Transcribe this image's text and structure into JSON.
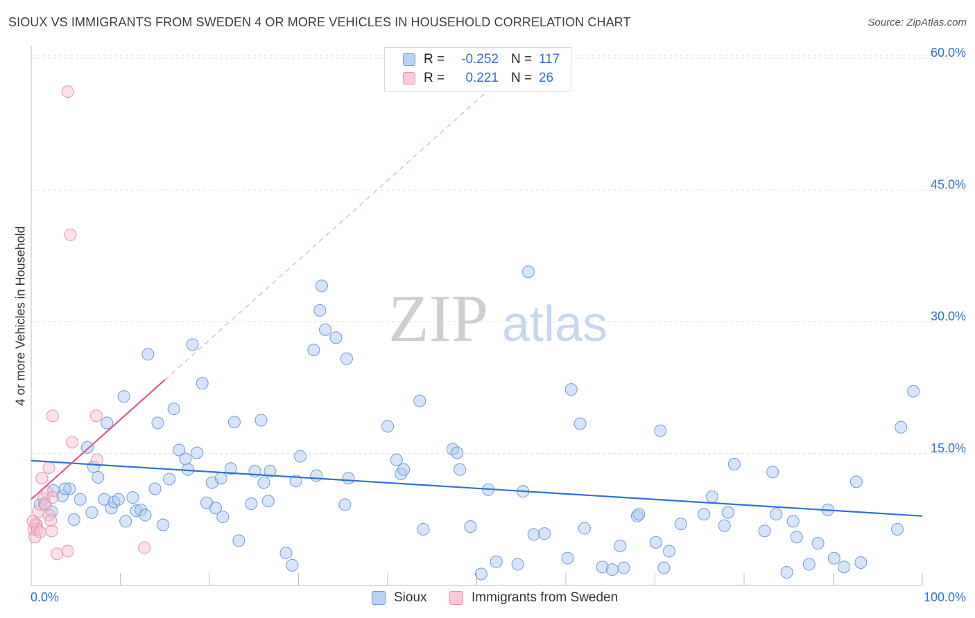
{
  "title": "SIOUX VS IMMIGRANTS FROM SWEDEN 4 OR MORE VEHICLES IN HOUSEHOLD CORRELATION CHART",
  "source": "Source: ZipAtlas.com",
  "watermark": {
    "zip": "ZIP",
    "atlas": "atlas"
  },
  "legend": {
    "rows": [
      {
        "r_label": "R =",
        "r_value": "-0.252",
        "n_label": "N =",
        "n_value": "117"
      },
      {
        "r_label": "R =",
        "r_value": "0.221",
        "n_label": "N =",
        "n_value": "26"
      }
    ]
  },
  "bottom_legend": {
    "series1": "Sioux",
    "series2": "Immigrants from Sweden"
  },
  "colors": {
    "sioux_fill": "#a9c6ef",
    "sioux_stroke": "#6d9ad8",
    "sioux_line": "#2f6fd6",
    "sweden_fill": "#f6bfd0",
    "sweden_stroke": "#ec8eab",
    "sweden_line": "#e0568a",
    "tick_label": "#2f6fd6",
    "grid": "#dcdcdc"
  },
  "chart_data": {
    "type": "scatter",
    "title": "SIOUX VS IMMIGRANTS FROM SWEDEN 4 OR MORE VEHICLES IN HOUSEHOLD CORRELATION CHART",
    "xlabel": "",
    "ylabel": "4 or more Vehicles in Household",
    "xlim": [
      0,
      100
    ],
    "ylim": [
      0,
      60
    ],
    "x_tick_labels": [
      "0.0%",
      "100.0%"
    ],
    "y_ticks": [
      15,
      30,
      45,
      60
    ],
    "y_tick_labels": [
      "15.0%",
      "30.0%",
      "45.0%",
      "60.0%"
    ],
    "grid": true,
    "legend_position": "top-center",
    "series": [
      {
        "name": "Sioux",
        "R": -0.252,
        "N": 117,
        "trend": {
          "x": [
            0,
            100
          ],
          "y": [
            14.2,
            7.9
          ]
        },
        "points": [
          [
            1.0,
            9.2
          ],
          [
            2.5,
            10.8
          ],
          [
            3.5,
            10.2
          ],
          [
            4.3,
            11.0
          ],
          [
            5.5,
            9.8
          ],
          [
            6.3,
            15.7
          ],
          [
            6.8,
            8.3
          ],
          [
            7.0,
            13.5
          ],
          [
            7.5,
            12.3
          ],
          [
            8.2,
            9.8
          ],
          [
            8.5,
            18.5
          ],
          [
            9.0,
            8.8
          ],
          [
            9.3,
            9.5
          ],
          [
            9.8,
            9.8
          ],
          [
            10.4,
            21.5
          ],
          [
            10.6,
            7.3
          ],
          [
            11.4,
            10.0
          ],
          [
            11.8,
            8.5
          ],
          [
            12.3,
            8.6
          ],
          [
            12.8,
            8.0
          ],
          [
            13.1,
            26.3
          ],
          [
            13.9,
            11.0
          ],
          [
            14.2,
            18.5
          ],
          [
            14.8,
            6.9
          ],
          [
            15.5,
            12.1
          ],
          [
            16.0,
            20.1
          ],
          [
            16.6,
            15.4
          ],
          [
            17.3,
            14.4
          ],
          [
            17.6,
            13.2
          ],
          [
            18.1,
            27.4
          ],
          [
            18.6,
            15.1
          ],
          [
            19.2,
            23.0
          ],
          [
            19.7,
            9.4
          ],
          [
            20.3,
            11.7
          ],
          [
            20.7,
            8.8
          ],
          [
            21.3,
            12.2
          ],
          [
            21.5,
            7.8
          ],
          [
            22.4,
            13.3
          ],
          [
            22.8,
            18.6
          ],
          [
            23.3,
            5.1
          ],
          [
            24.7,
            9.3
          ],
          [
            25.1,
            13.0
          ],
          [
            25.8,
            18.8
          ],
          [
            26.1,
            11.7
          ],
          [
            26.6,
            9.6
          ],
          [
            28.6,
            3.7
          ],
          [
            29.3,
            2.3
          ],
          [
            29.7,
            11.9
          ],
          [
            30.2,
            14.7
          ],
          [
            31.7,
            26.8
          ],
          [
            32.4,
            31.3
          ],
          [
            32.6,
            34.1
          ],
          [
            33.0,
            29.1
          ],
          [
            34.2,
            28.2
          ],
          [
            35.2,
            9.2
          ],
          [
            35.4,
            25.8
          ],
          [
            35.6,
            12.2
          ],
          [
            40.0,
            18.1
          ],
          [
            41.0,
            14.3
          ],
          [
            41.5,
            12.7
          ],
          [
            41.8,
            13.2
          ],
          [
            43.6,
            21.0
          ],
          [
            44.0,
            6.4
          ],
          [
            47.3,
            15.5
          ],
          [
            47.8,
            15.1
          ],
          [
            48.1,
            13.2
          ],
          [
            49.3,
            6.7
          ],
          [
            50.5,
            1.3
          ],
          [
            51.3,
            10.9
          ],
          [
            52.2,
            2.7
          ],
          [
            54.6,
            2.4
          ],
          [
            55.2,
            10.7
          ],
          [
            55.8,
            35.7
          ],
          [
            56.4,
            5.8
          ],
          [
            57.6,
            5.9
          ],
          [
            60.2,
            3.1
          ],
          [
            60.6,
            22.3
          ],
          [
            61.6,
            18.4
          ],
          [
            62.1,
            6.5
          ],
          [
            64.1,
            2.1
          ],
          [
            65.2,
            1.8
          ],
          [
            66.1,
            4.5
          ],
          [
            66.5,
            2.0
          ],
          [
            68.0,
            7.9
          ],
          [
            68.2,
            8.1
          ],
          [
            70.1,
            4.9
          ],
          [
            70.6,
            17.6
          ],
          [
            71.0,
            2.0
          ],
          [
            71.6,
            3.9
          ],
          [
            72.9,
            7.0
          ],
          [
            75.5,
            8.1
          ],
          [
            76.4,
            10.1
          ],
          [
            77.8,
            6.8
          ],
          [
            78.2,
            8.3
          ],
          [
            78.9,
            13.8
          ],
          [
            82.3,
            6.2
          ],
          [
            83.2,
            12.9
          ],
          [
            83.6,
            8.1
          ],
          [
            84.8,
            1.5
          ],
          [
            85.5,
            7.3
          ],
          [
            85.9,
            5.5
          ],
          [
            87.3,
            2.4
          ],
          [
            88.3,
            4.8
          ],
          [
            89.4,
            8.6
          ],
          [
            90.1,
            3.1
          ],
          [
            91.2,
            2.1
          ],
          [
            92.6,
            11.8
          ],
          [
            93.1,
            2.6
          ],
          [
            97.2,
            6.4
          ],
          [
            97.6,
            18.0
          ],
          [
            99.0,
            22.1
          ],
          [
            1.5,
            9.3
          ],
          [
            2.3,
            8.4
          ],
          [
            3.8,
            11.0
          ],
          [
            4.8,
            7.5
          ],
          [
            26.8,
            13.0
          ],
          [
            32.0,
            12.5
          ]
        ]
      },
      {
        "name": "Immigrants from Sweden",
        "R": 0.221,
        "N": 26,
        "trend": {
          "x": [
            0,
            15
          ],
          "y": [
            9.8,
            23.4
          ]
        },
        "trend_extension": {
          "x": [
            15,
            53
          ],
          "y": [
            23.4,
            57.9
          ]
        },
        "points": [
          [
            0.3,
            6.4
          ],
          [
            0.4,
            5.5
          ],
          [
            0.5,
            7.0
          ],
          [
            0.6,
            6.9
          ],
          [
            0.7,
            6.4
          ],
          [
            0.8,
            8.4
          ],
          [
            1.0,
            6.1
          ],
          [
            1.2,
            12.2
          ],
          [
            1.4,
            9.9
          ],
          [
            1.6,
            9.1
          ],
          [
            1.8,
            10.6
          ],
          [
            2.0,
            8.0
          ],
          [
            2.0,
            13.4
          ],
          [
            2.2,
            7.4
          ],
          [
            2.3,
            6.2
          ],
          [
            2.4,
            10.0
          ],
          [
            2.4,
            19.3
          ],
          [
            2.9,
            3.6
          ],
          [
            4.1,
            56.2
          ],
          [
            4.1,
            3.9
          ],
          [
            4.4,
            39.9
          ],
          [
            4.6,
            16.3
          ],
          [
            7.3,
            19.3
          ],
          [
            7.4,
            14.3
          ],
          [
            12.7,
            4.3
          ],
          [
            0.2,
            7.3
          ]
        ]
      }
    ]
  }
}
